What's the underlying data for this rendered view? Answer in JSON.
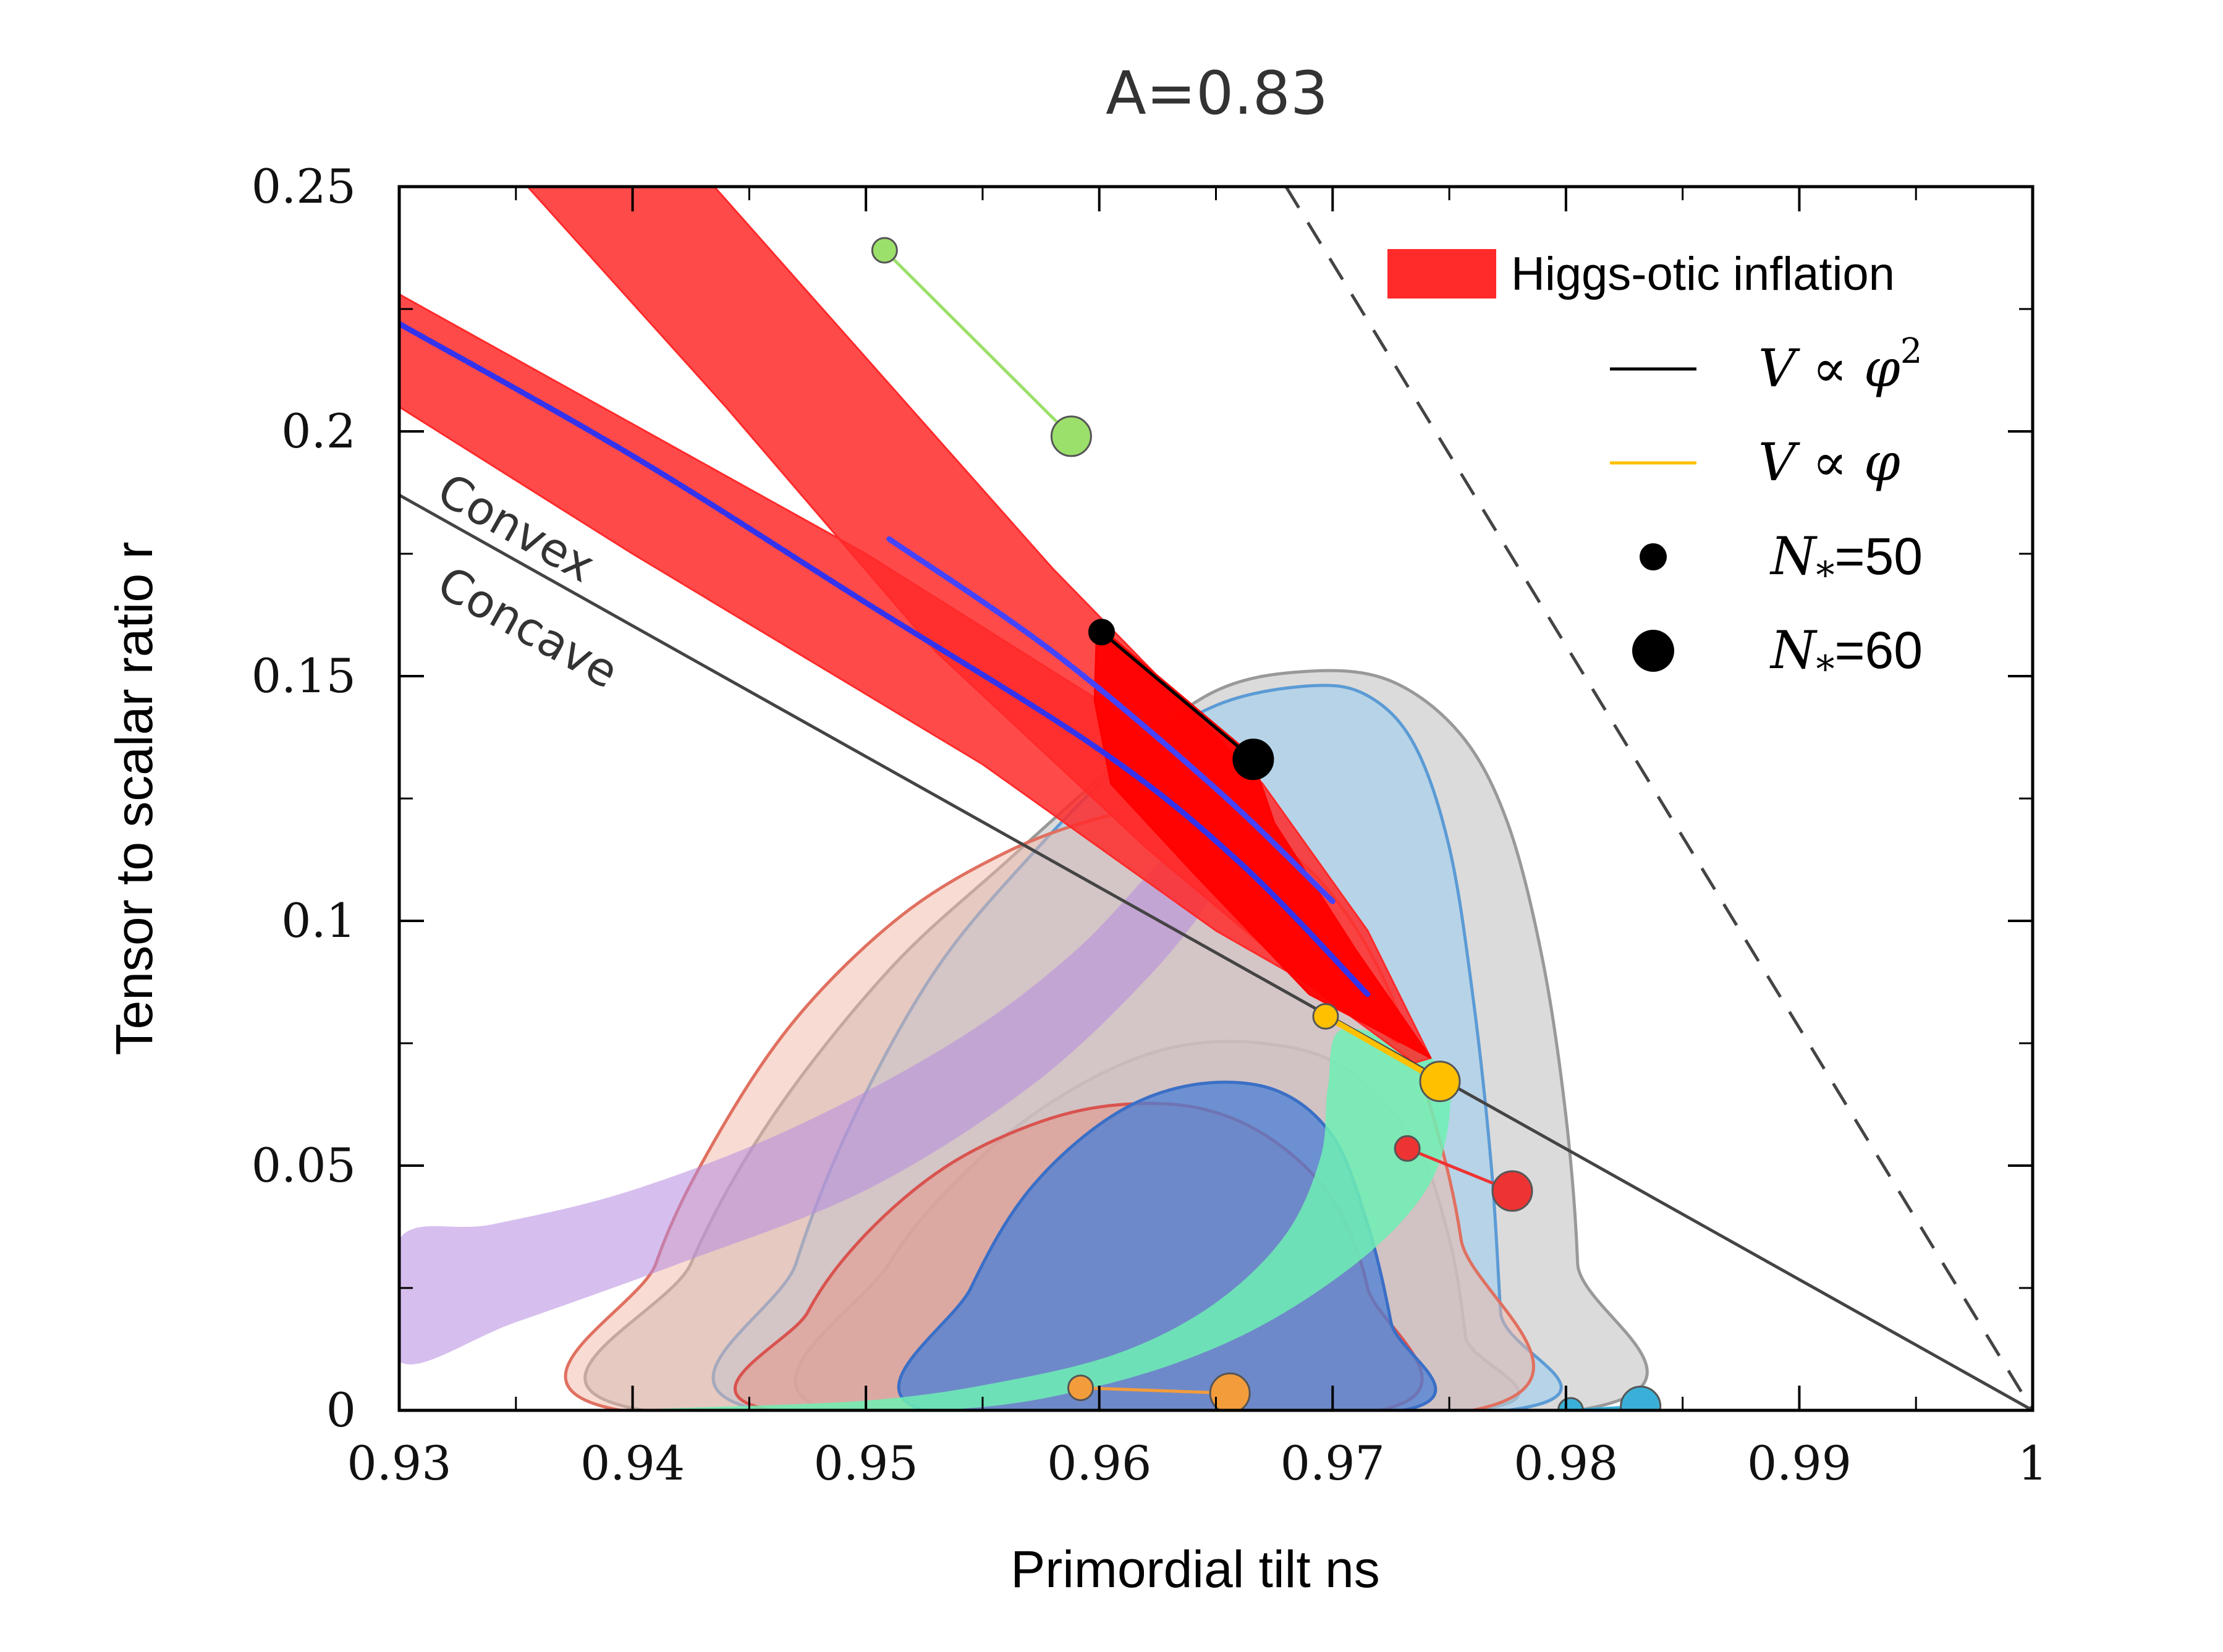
{
  "chart_data": {
    "type": "scatter",
    "title": "A=0.83",
    "xlabel": "Primordial tilt ns",
    "ylabel": "Tensor to scalar ratio r",
    "xlim": [
      0.93,
      1.0
    ],
    "ylim": [
      0,
      0.25
    ],
    "xticks": [
      "0.93",
      "0.94",
      "0.95",
      "0.96",
      "0.97",
      "0.98",
      "0.99",
      "1"
    ],
    "yticks": [
      "0",
      "0.05",
      "0.1",
      "0.15",
      "0.2",
      "0.25"
    ],
    "grid": false,
    "legend_position": "top-right",
    "legend": [
      {
        "kind": "band",
        "label": "Higgs-otic inflation",
        "color": "#ff2a2a"
      },
      {
        "kind": "line",
        "label_math": "V ∝ φ",
        "label_sup": "2",
        "color": "#000000"
      },
      {
        "kind": "line",
        "label_math": "V ∝ φ",
        "label_sup": "",
        "color": "#ffc000"
      },
      {
        "kind": "marker",
        "label_math": "N",
        "label_sub": "*",
        "label_rest": "=50",
        "color": "#000000",
        "size": "small"
      },
      {
        "kind": "marker",
        "label_math": "N",
        "label_sub": "*",
        "label_rest": "=60",
        "color": "#000000",
        "size": "large"
      }
    ],
    "annotations": [
      {
        "text": "Convex",
        "x": 0.9315,
        "y": 0.186
      },
      {
        "text": "Concave",
        "x": 0.9315,
        "y": 0.167
      }
    ],
    "reference_lines": [
      {
        "name": "convex-concave boundary",
        "style": "solid",
        "color": "#444444",
        "points": [
          [
            0.93,
            0.187
          ],
          [
            1.0,
            0.0
          ]
        ]
      },
      {
        "name": "dashed boundary",
        "style": "dashed",
        "color": "#444444",
        "points": [
          [
            0.968,
            0.25
          ],
          [
            1.0,
            0.0
          ]
        ]
      }
    ],
    "contours": [
      {
        "name": "grey-outer",
        "fill": "#bdbdbd",
        "stroke": "#999999",
        "opacity": 0.55,
        "points": [
          [
            0.9405,
            0.0
          ],
          [
            0.9425,
            0.03
          ],
          [
            0.946,
            0.06
          ],
          [
            0.951,
            0.09
          ],
          [
            0.956,
            0.112
          ],
          [
            0.961,
            0.133
          ],
          [
            0.965,
            0.147
          ],
          [
            0.969,
            0.151
          ],
          [
            0.9725,
            0.149
          ],
          [
            0.9755,
            0.138
          ],
          [
            0.9775,
            0.12
          ],
          [
            0.979,
            0.092
          ],
          [
            0.98,
            0.06
          ],
          [
            0.9805,
            0.03
          ],
          [
            0.9805,
            0.0
          ]
        ]
      },
      {
        "name": "grey-inner",
        "fill": "#a5a5a5",
        "stroke": "#888888",
        "opacity": 0.45,
        "points": [
          [
            0.9485,
            0.0
          ],
          [
            0.951,
            0.03
          ],
          [
            0.955,
            0.052
          ],
          [
            0.959,
            0.066
          ],
          [
            0.963,
            0.074
          ],
          [
            0.967,
            0.075
          ],
          [
            0.9705,
            0.07
          ],
          [
            0.9735,
            0.055
          ],
          [
            0.975,
            0.035
          ],
          [
            0.9757,
            0.015
          ],
          [
            0.976,
            0.0
          ]
        ]
      },
      {
        "name": "blue-outer",
        "fill": "#a8d0ec",
        "stroke": "#5b9bd5",
        "opacity": 0.7,
        "points": [
          [
            0.9455,
            0.0
          ],
          [
            0.947,
            0.03
          ],
          [
            0.9495,
            0.06
          ],
          [
            0.953,
            0.09
          ],
          [
            0.957,
            0.113
          ],
          [
            0.961,
            0.132
          ],
          [
            0.965,
            0.144
          ],
          [
            0.969,
            0.148
          ],
          [
            0.9715,
            0.146
          ],
          [
            0.9735,
            0.136
          ],
          [
            0.975,
            0.115
          ],
          [
            0.976,
            0.085
          ],
          [
            0.9768,
            0.05
          ],
          [
            0.9772,
            0.02
          ],
          [
            0.9775,
            0.0
          ]
        ]
      },
      {
        "name": "red-outer",
        "fill": "#f2b8a6",
        "stroke": "#e07060",
        "opacity": 0.5,
        "points": [
          [
            0.9395,
            0.0
          ],
          [
            0.941,
            0.03
          ],
          [
            0.9435,
            0.055
          ],
          [
            0.947,
            0.08
          ],
          [
            0.9515,
            0.101
          ],
          [
            0.956,
            0.114
          ],
          [
            0.96,
            0.121
          ],
          [
            0.963,
            0.123
          ],
          [
            0.9665,
            0.119
          ],
          [
            0.9695,
            0.108
          ],
          [
            0.972,
            0.09
          ],
          [
            0.974,
            0.065
          ],
          [
            0.9755,
            0.035
          ],
          [
            0.976,
            0.0
          ]
        ]
      },
      {
        "name": "red-inner",
        "fill": "#e88a7a",
        "stroke": "#d9534f",
        "opacity": 0.45,
        "points": [
          [
            0.946,
            0.0
          ],
          [
            0.9475,
            0.02
          ],
          [
            0.95,
            0.036
          ],
          [
            0.9535,
            0.05
          ],
          [
            0.9575,
            0.059
          ],
          [
            0.961,
            0.0625
          ],
          [
            0.9645,
            0.0615
          ],
          [
            0.9675,
            0.055
          ],
          [
            0.97,
            0.043
          ],
          [
            0.9715,
            0.025
          ],
          [
            0.972,
            0.0
          ]
        ]
      },
      {
        "name": "blue-inner",
        "fill": "#4a7fd6",
        "stroke": "#3a6fc6",
        "opacity": 0.75,
        "points": [
          [
            0.9525,
            0.0
          ],
          [
            0.9545,
            0.025
          ],
          [
            0.957,
            0.045
          ],
          [
            0.9605,
            0.06
          ],
          [
            0.964,
            0.0665
          ],
          [
            0.9675,
            0.0655
          ],
          [
            0.97,
            0.056
          ],
          [
            0.9715,
            0.038
          ],
          [
            0.9725,
            0.018
          ],
          [
            0.973,
            0.0
          ]
        ]
      },
      {
        "name": "purple-band",
        "fill": "#b58be0",
        "stroke": "none",
        "opacity": 0.55,
        "points": [
          [
            0.93,
            0.01
          ],
          [
            0.935,
            0.018
          ],
          [
            0.942,
            0.03
          ],
          [
            0.95,
            0.045
          ],
          [
            0.957,
            0.066
          ],
          [
            0.962,
            0.088
          ],
          [
            0.965,
            0.106
          ],
          [
            0.9665,
            0.12
          ],
          [
            0.9655,
            0.123
          ],
          [
            0.963,
            0.114
          ],
          [
            0.959,
            0.094
          ],
          [
            0.954,
            0.076
          ],
          [
            0.947,
            0.058
          ],
          [
            0.94,
            0.045
          ],
          [
            0.934,
            0.038
          ],
          [
            0.93,
            0.035
          ]
        ]
      },
      {
        "name": "green-band",
        "fill": "#6ef0b4",
        "stroke": "none",
        "opacity": 0.85,
        "points": [
          [
            0.94,
            0.0
          ],
          [
            0.95,
            0.002
          ],
          [
            0.956,
            0.006
          ],
          [
            0.961,
            0.012
          ],
          [
            0.965,
            0.022
          ],
          [
            0.968,
            0.036
          ],
          [
            0.9695,
            0.052
          ],
          [
            0.9698,
            0.066
          ],
          [
            0.9705,
            0.078
          ],
          [
            0.9745,
            0.071
          ],
          [
            0.975,
            0.06
          ],
          [
            0.974,
            0.045
          ],
          [
            0.971,
            0.03
          ],
          [
            0.966,
            0.015
          ],
          [
            0.96,
            0.005
          ],
          [
            0.953,
            0.0
          ]
        ]
      }
    ],
    "higgs_otic_bands": [
      {
        "name": "lower-band",
        "color": "#ff2a2a",
        "opacity": 0.85,
        "points": [
          [
            0.93,
            0.228
          ],
          [
            0.95,
            0.175
          ],
          [
            0.96,
            0.145
          ],
          [
            0.968,
            0.113
          ],
          [
            0.9715,
            0.09
          ],
          [
            0.973,
            0.0765
          ],
          [
            0.9728,
            0.075
          ],
          [
            0.9705,
            0.083
          ],
          [
            0.965,
            0.098
          ],
          [
            0.955,
            0.132
          ],
          [
            0.94,
            0.175
          ],
          [
            0.93,
            0.205
          ]
        ]
      },
      {
        "name": "upper-band",
        "color": "#ff2a2a",
        "opacity": 0.85,
        "points": [
          [
            0.9355,
            0.25
          ],
          [
            0.9435,
            0.25
          ],
          [
            0.958,
            0.172
          ],
          [
            0.967,
            0.128
          ],
          [
            0.9715,
            0.098
          ],
          [
            0.9742,
            0.072
          ],
          [
            0.9735,
            0.071
          ],
          [
            0.9695,
            0.085
          ],
          [
            0.962,
            0.115
          ],
          [
            0.953,
            0.155
          ],
          [
            0.944,
            0.205
          ]
        ]
      },
      {
        "name": "solid-core",
        "color": "#ff0000",
        "opacity": 0.95,
        "points": [
          [
            0.9599,
            0.1605
          ],
          [
            0.9665,
            0.134
          ],
          [
            0.9675,
            0.12
          ],
          [
            0.971,
            0.094
          ],
          [
            0.9742,
            0.072
          ],
          [
            0.969,
            0.085
          ],
          [
            0.964,
            0.11
          ],
          [
            0.9605,
            0.128
          ],
          [
            0.9598,
            0.145
          ]
        ]
      }
    ],
    "blue_lines": [
      {
        "name": "main-blue",
        "color": "#3333ee",
        "points": [
          [
            0.93,
            0.222
          ],
          [
            0.94,
            0.195
          ],
          [
            0.95,
            0.165
          ],
          [
            0.96,
            0.135
          ],
          [
            0.966,
            0.112
          ],
          [
            0.9715,
            0.085
          ]
        ]
      },
      {
        "name": "upper-blue",
        "color": "#4444ff",
        "points": [
          [
            0.951,
            0.178
          ],
          [
            0.958,
            0.155
          ],
          [
            0.965,
            0.127
          ],
          [
            0.97,
            0.104
          ]
        ]
      }
    ],
    "series": [
      {
        "name": "V ∝ φ²",
        "color": "#000000",
        "points": [
          [
            0.9601,
            0.159
          ],
          [
            0.9666,
            0.133
          ]
        ]
      },
      {
        "name": "V ∝ φ",
        "color": "#ffc000",
        "points": [
          [
            0.9697,
            0.0805
          ],
          [
            0.9746,
            0.0672
          ]
        ]
      },
      {
        "color": "#9be06a",
        "points": [
          [
            0.9508,
            0.237
          ],
          [
            0.9588,
            0.199
          ]
        ]
      },
      {
        "color": "#ee3333",
        "points": [
          [
            0.9732,
            0.0535
          ],
          [
            0.9777,
            0.0448
          ]
        ]
      },
      {
        "color": "#f39c3b",
        "points": [
          [
            0.9592,
            0.0046
          ],
          [
            0.9656,
            0.0035
          ]
        ]
      },
      {
        "color": "#3ab0d8",
        "points": [
          [
            0.9802,
            0.0
          ],
          [
            0.9832,
            0.0008
          ]
        ]
      }
    ]
  }
}
